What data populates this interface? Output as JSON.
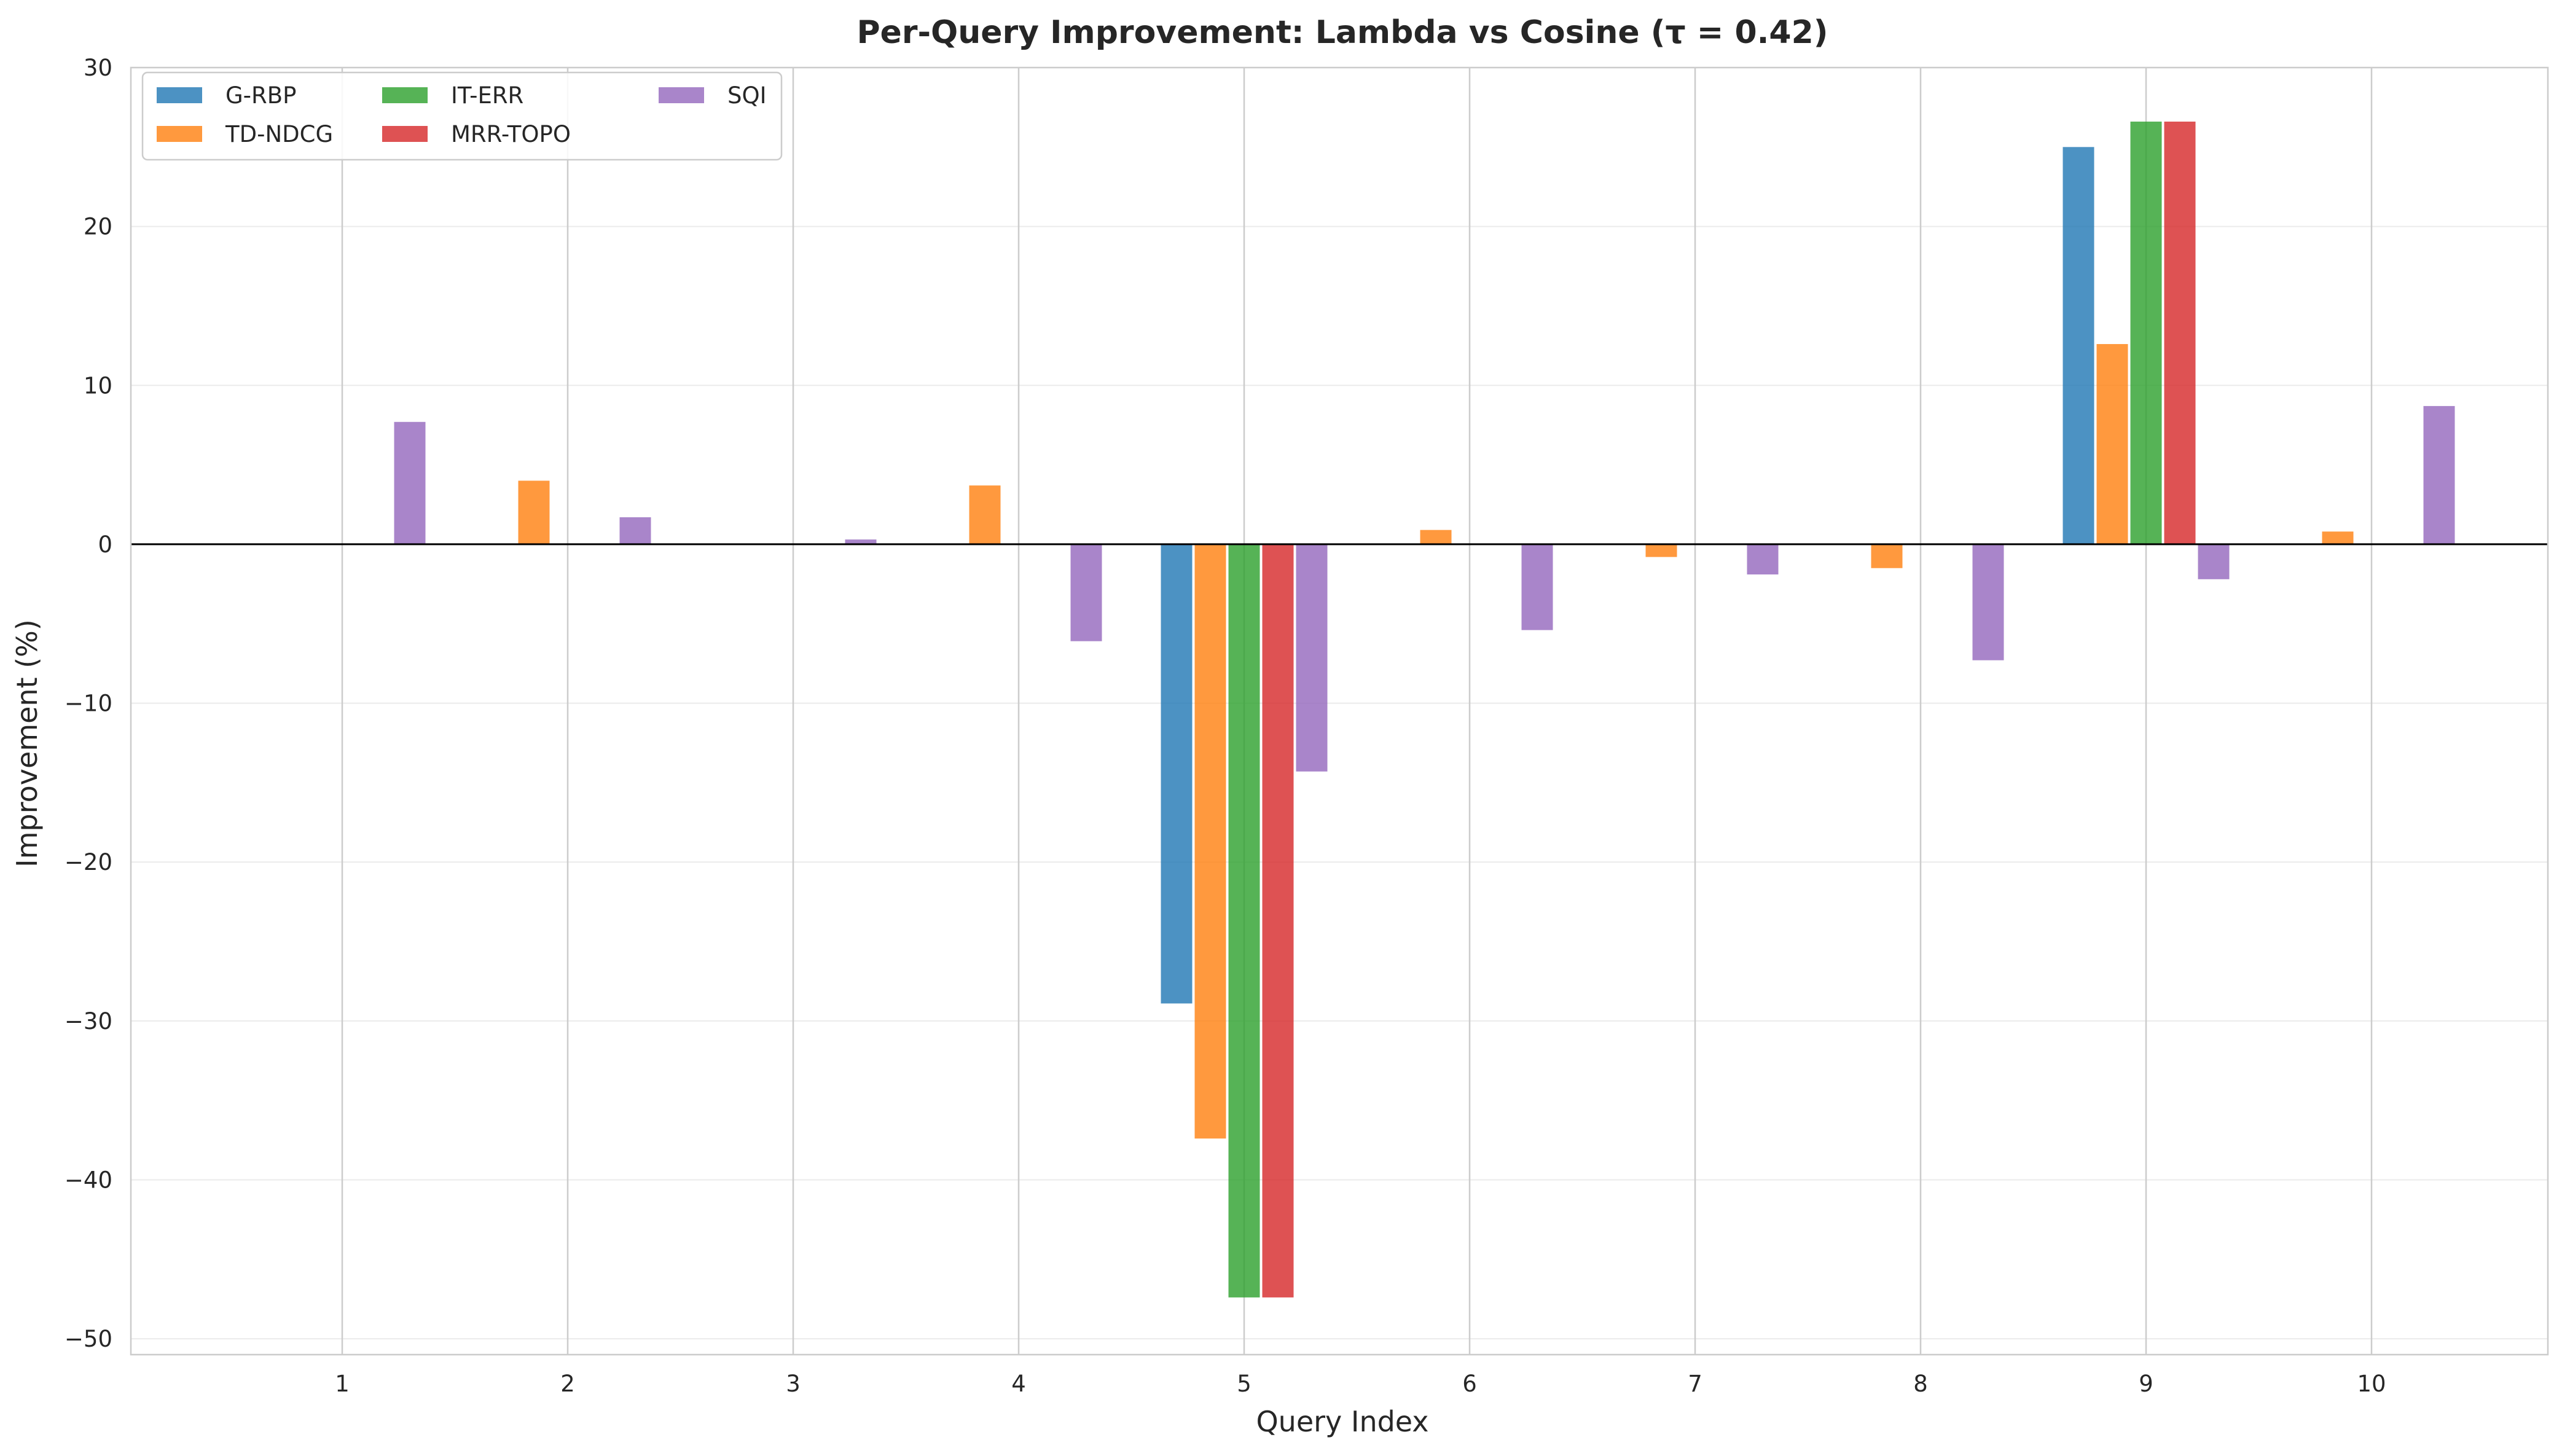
{
  "chart_data": {
    "type": "bar",
    "title": "Per-Query Improvement: Lambda vs Cosine (τ = 0.42)",
    "xlabel": "Query Index",
    "ylabel": "Improvement (%)",
    "categories": [
      "1",
      "2",
      "3",
      "4",
      "5",
      "6",
      "7",
      "8",
      "9",
      "10"
    ],
    "ylim": [
      -51,
      30
    ],
    "yticks": [
      30,
      20,
      10,
      0,
      -10,
      -20,
      -30,
      -40,
      -50
    ],
    "ytick_labels": [
      "30",
      "20",
      "10",
      "0",
      "−10",
      "−20",
      "−30",
      "−40",
      "−50"
    ],
    "grid": true,
    "legend_position": "top-left",
    "series": [
      {
        "name": "G-RBP",
        "color": "#1f77b4",
        "values": [
          0,
          0,
          0,
          0,
          -28.9,
          0,
          0,
          0,
          25.0,
          0
        ]
      },
      {
        "name": "TD-NDCG",
        "color": "#ff7f0e",
        "values": [
          0,
          4.0,
          0,
          3.7,
          -37.4,
          0.9,
          -0.8,
          -1.5,
          12.6,
          0.8
        ]
      },
      {
        "name": "IT-ERR",
        "color": "#2ca02c",
        "values": [
          0,
          0,
          0,
          0,
          -47.4,
          0,
          0,
          0,
          26.6,
          0
        ]
      },
      {
        "name": "MRR-TOPO",
        "color": "#d62728",
        "values": [
          0,
          0,
          0,
          0,
          -47.4,
          0,
          0,
          0,
          26.6,
          0
        ]
      },
      {
        "name": "SQI",
        "color": "#9467bd",
        "values": [
          7.7,
          1.7,
          0.3,
          -6.1,
          -14.3,
          -5.4,
          -1.9,
          -7.3,
          -2.2,
          8.7
        ]
      }
    ]
  }
}
